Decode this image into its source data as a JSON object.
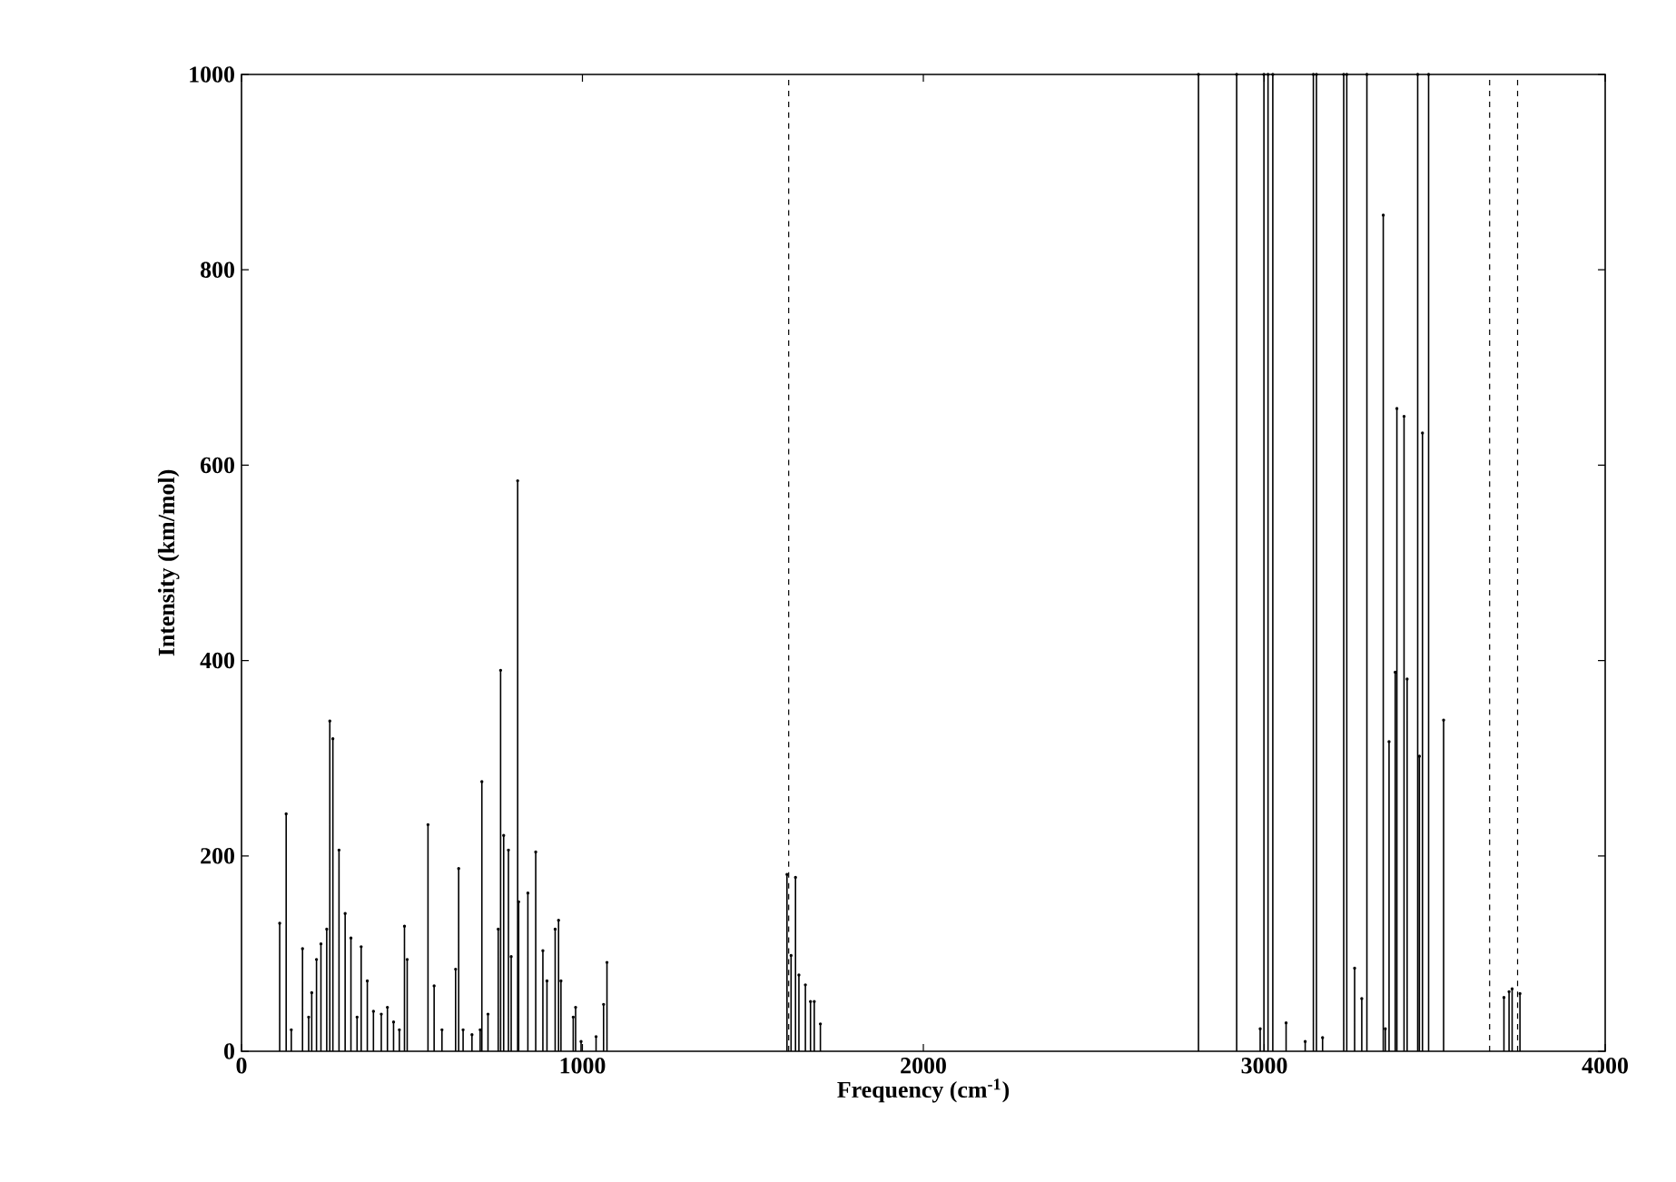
{
  "chart_data": {
    "type": "lollipop",
    "marker": "none",
    "xlabel": "Frequency (cm$^{-1}$)",
    "ylabel": "Intensity (km/mol)",
    "x": [
      112,
      131,
      146,
      179,
      197,
      206,
      220,
      233,
      250,
      259,
      268,
      286,
      304,
      321,
      339,
      351,
      369,
      387,
      410,
      428,
      446,
      463,
      478,
      486,
      547,
      565,
      588,
      628,
      637,
      650,
      676,
      700,
      705,
      723,
      753,
      760,
      769,
      783,
      791,
      810,
      813,
      840,
      863,
      884,
      896,
      920,
      930,
      937,
      973,
      980,
      996,
      1040,
      1062,
      1072,
      1600,
      1612,
      1625,
      1635,
      1654,
      1669,
      1680,
      1698,
      2807,
      2919,
      2988,
      2999,
      3011,
      3025,
      3064,
      3120,
      3144,
      3153,
      3171,
      3233,
      3242,
      3265,
      3286,
      3301,
      3349,
      3355,
      3366,
      3384,
      3389,
      3410,
      3419,
      3450,
      3455,
      3464,
      3482,
      3526,
      3703,
      3718,
      3727,
      3750
    ],
    "values": [
      131,
      243,
      22,
      105,
      35,
      60,
      94,
      110,
      125,
      338,
      320,
      206,
      141,
      116,
      35,
      107,
      72,
      41,
      38,
      45,
      30,
      22,
      128,
      94,
      232,
      67,
      22,
      84,
      187,
      22,
      17,
      22,
      276,
      38,
      125,
      390,
      221,
      206,
      97,
      584,
      153,
      162,
      204,
      103,
      72,
      125,
      134,
      72,
      35,
      45,
      10,
      15,
      48,
      91,
      181,
      98,
      178,
      78,
      68,
      51,
      51,
      28,
      1000,
      1000,
      23,
      1000,
      1000,
      1000,
      29,
      10,
      1000,
      1000,
      14,
      1000,
      1000,
      85,
      54,
      1000,
      856,
      23,
      317,
      388,
      658,
      650,
      381,
      1000,
      302,
      633,
      1000,
      339,
      55,
      61,
      64,
      59
    ],
    "color": "#000000",
    "xlim": [
      0,
      4000
    ],
    "xticks": [
      0,
      1000,
      2000,
      3000,
      4000
    ],
    "ylim": [
      0,
      1000
    ],
    "yticks": [
      0,
      200,
      400,
      600,
      800,
      1000
    ],
    "ref_lines": [
      {
        "axis": "x",
        "value": 1605,
        "line_style": "dashed",
        "color": "#000000"
      },
      {
        "axis": "x",
        "value": 3661,
        "line_style": "dashed",
        "color": "#000000"
      },
      {
        "axis": "x",
        "value": 3743,
        "line_style": "dashed",
        "color": "#000000"
      }
    ]
  }
}
